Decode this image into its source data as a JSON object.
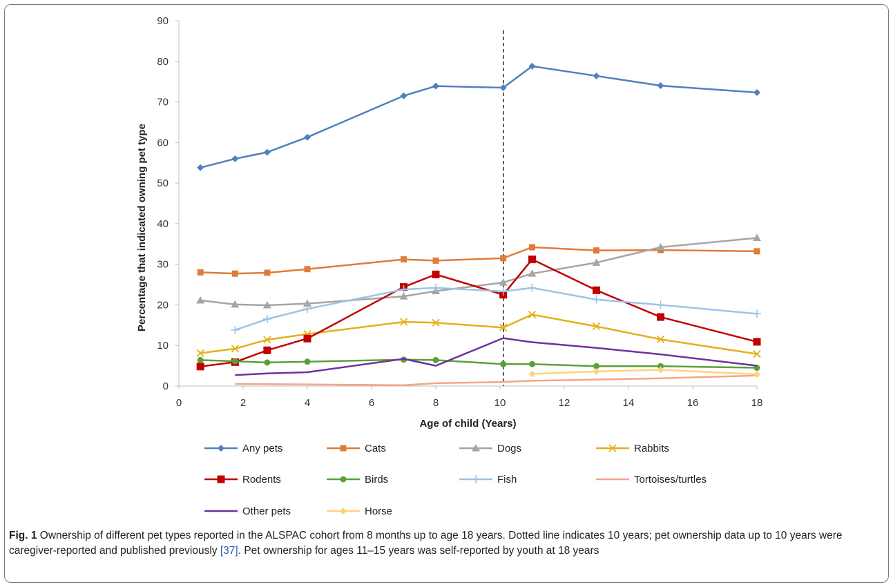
{
  "colors": {
    "any_pets": "#4f81bd",
    "cats": "#e07b39",
    "dogs": "#a5a5a5",
    "rabbits": "#e6ae1a",
    "rodents": "#c00000",
    "birds": "#5aa03a",
    "fish": "#9dc3e6",
    "tortoises": "#f4a58a",
    "other_pets": "#7030a0",
    "horse": "#ffd27f"
  },
  "chart_data": {
    "type": "line",
    "ylabel": "Percentage that indicated owning pet type",
    "xlabel": "Age of child (Years)",
    "xlim": [
      0,
      18
    ],
    "ylim": [
      0,
      90
    ],
    "x_ticks": [
      "0",
      "2",
      "4",
      "6",
      "8",
      "10",
      "12",
      "14",
      "16",
      "18"
    ],
    "y_ticks": [
      "0",
      "10",
      "20",
      "30",
      "40",
      "50",
      "60",
      "70",
      "80",
      "90"
    ],
    "reference_line_x": 10.1,
    "legend_position": "bottom",
    "series": [
      {
        "key": "any_pets",
        "name": "Any pets",
        "marker": "diamond",
        "points": [
          [
            0.67,
            53.8
          ],
          [
            1.75,
            56
          ],
          [
            2.75,
            57.6
          ],
          [
            4,
            61.3
          ],
          [
            7,
            71.5
          ],
          [
            8,
            73.9
          ],
          [
            10.1,
            73.5
          ],
          [
            11,
            78.8
          ],
          [
            13,
            76.4
          ],
          [
            15,
            74
          ],
          [
            18,
            72.3
          ]
        ]
      },
      {
        "key": "cats",
        "name": "Cats",
        "marker": "square",
        "points": [
          [
            0.67,
            28
          ],
          [
            1.75,
            27.7
          ],
          [
            2.75,
            27.9
          ],
          [
            4,
            28.8
          ],
          [
            7,
            31.2
          ],
          [
            8,
            30.9
          ],
          [
            10.1,
            31.5
          ],
          [
            11,
            34.2
          ],
          [
            13,
            33.4
          ],
          [
            15,
            33.5
          ],
          [
            18,
            33.2
          ]
        ]
      },
      {
        "key": "dogs",
        "name": "Dogs",
        "marker": "triangle",
        "points": [
          [
            0.67,
            21.1
          ],
          [
            1.75,
            20.1
          ],
          [
            2.75,
            19.9
          ],
          [
            4,
            20.3
          ],
          [
            7,
            22.1
          ],
          [
            8,
            23.4
          ],
          [
            10.1,
            25.5
          ],
          [
            11,
            27.7
          ],
          [
            13,
            30.4
          ],
          [
            15,
            34.2
          ],
          [
            18,
            36.5
          ]
        ]
      },
      {
        "key": "rabbits",
        "name": "Rabbits",
        "marker": "x",
        "points": [
          [
            0.67,
            8.1
          ],
          [
            1.75,
            9.2
          ],
          [
            2.75,
            11.4
          ],
          [
            4,
            12.8
          ],
          [
            7,
            15.8
          ],
          [
            8,
            15.6
          ],
          [
            10.1,
            14.4
          ],
          [
            11,
            17.6
          ],
          [
            13,
            14.7
          ],
          [
            15,
            11.5
          ],
          [
            18,
            7.9
          ]
        ]
      },
      {
        "key": "rodents",
        "name": "Rodents",
        "marker": "square-large",
        "points": [
          [
            0.67,
            4.8
          ],
          [
            1.75,
            5.9
          ],
          [
            2.75,
            8.8
          ],
          [
            4,
            11.7
          ],
          [
            7,
            24.4
          ],
          [
            8,
            27.5
          ],
          [
            10.1,
            22.5
          ],
          [
            11,
            31.2
          ],
          [
            13,
            23.6
          ],
          [
            15,
            17
          ],
          [
            18,
            10.9
          ]
        ]
      },
      {
        "key": "birds",
        "name": "Birds",
        "marker": "circle",
        "points": [
          [
            0.67,
            6.4
          ],
          [
            1.75,
            6.1
          ],
          [
            2.75,
            5.8
          ],
          [
            4,
            6
          ],
          [
            7,
            6.5
          ],
          [
            8,
            6.4
          ],
          [
            10.1,
            5.4
          ],
          [
            11,
            5.4
          ],
          [
            13,
            4.9
          ],
          [
            15,
            4.9
          ],
          [
            18,
            4.5
          ]
        ]
      },
      {
        "key": "fish",
        "name": "Fish",
        "marker": "plus",
        "points": [
          [
            1.75,
            13.8
          ],
          [
            2.75,
            16.5
          ],
          [
            4,
            19
          ],
          [
            7,
            23.8
          ],
          [
            8,
            24.2
          ],
          [
            10.1,
            23.3
          ],
          [
            11,
            24.2
          ],
          [
            13,
            21.3
          ],
          [
            15,
            20
          ],
          [
            18,
            17.8
          ]
        ]
      },
      {
        "key": "tortoises",
        "name": "Tortoises/turtles",
        "marker": "none",
        "points": [
          [
            1.75,
            0.5
          ],
          [
            4,
            0.4
          ],
          [
            7,
            0.2
          ],
          [
            8,
            0.7
          ],
          [
            10.1,
            1
          ],
          [
            11,
            1.3
          ],
          [
            13,
            1.6
          ],
          [
            15,
            1.9
          ],
          [
            18,
            2.6
          ]
        ]
      },
      {
        "key": "other_pets",
        "name": "Other pets",
        "marker": "none",
        "points": [
          [
            1.75,
            2.7
          ],
          [
            2.75,
            3.1
          ],
          [
            4,
            3.4
          ],
          [
            7,
            6.7
          ],
          [
            8,
            5
          ],
          [
            10.1,
            11.8
          ],
          [
            11,
            10.8
          ],
          [
            13,
            9.4
          ],
          [
            15,
            7.8
          ],
          [
            18,
            5
          ]
        ]
      },
      {
        "key": "horse",
        "name": "Horse",
        "marker": "diamond",
        "points": [
          [
            11,
            3
          ],
          [
            13,
            3.6
          ],
          [
            15,
            4
          ],
          [
            18,
            2.9
          ]
        ]
      }
    ]
  },
  "caption": {
    "label": "Fig. 1",
    "text_before_ref": " Ownership of different pet types reported in the ALSPAC cohort from 8 months up to age 18 years. Dotted line indicates 10 years; pet ownership data up to 10 years were caregiver-reported and published previously ",
    "ref": "[37]",
    "text_after_ref": ". Pet ownership for ages 11–15 years was self-reported by youth at 18 years"
  }
}
